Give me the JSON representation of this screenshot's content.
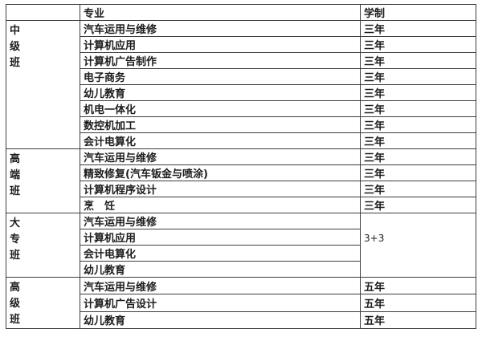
{
  "colors": {
    "background": "#ffffff",
    "border": "#3d3d3d",
    "text": "#1c1c1c"
  },
  "table": {
    "headers": {
      "corner": "",
      "major": "专业",
      "duration": "学制"
    },
    "sections": [
      {
        "label": "中级班",
        "label_chars": [
          "中",
          "级",
          "班"
        ],
        "rows": [
          {
            "major": "汽车运用与维修",
            "duration": "三年"
          },
          {
            "major": "计算机应用",
            "duration": "三年"
          },
          {
            "major": "计算机广告制作",
            "duration": "三年"
          },
          {
            "major": "电子商务",
            "duration": "三年"
          },
          {
            "major": "幼儿教育",
            "duration": "三年"
          },
          {
            "major": "机电一体化",
            "duration": "三年"
          },
          {
            "major": "数控机加工",
            "duration": "三年"
          },
          {
            "major": "会计电算化",
            "duration": "三年"
          }
        ]
      },
      {
        "label": "高端班",
        "label_chars": [
          "高",
          "端",
          "班"
        ],
        "rows": [
          {
            "major": "汽车运用与维修",
            "duration": "三年"
          },
          {
            "major": "精致修复(汽车钣金与喷涂)",
            "duration": "三年"
          },
          {
            "major": "计算机程序设计",
            "duration": "三年"
          },
          {
            "major": "烹　饪",
            "duration": "三年"
          }
        ]
      },
      {
        "label": "大专班",
        "label_chars": [
          "大",
          "专",
          "班"
        ],
        "merged_duration": "3+3",
        "rows": [
          {
            "major": "汽车运用与维修"
          },
          {
            "major": "计算机应用"
          },
          {
            "major": "会计电算化"
          },
          {
            "major": "幼儿教育"
          }
        ]
      },
      {
        "label": "高级班",
        "label_chars": [
          "高",
          "级",
          "班"
        ],
        "rows": [
          {
            "major": "汽车运用与维修",
            "duration": "五年"
          },
          {
            "major": "计算机广告设计",
            "duration": "五年"
          },
          {
            "major": "幼儿教育",
            "duration": "五年"
          }
        ]
      }
    ]
  }
}
